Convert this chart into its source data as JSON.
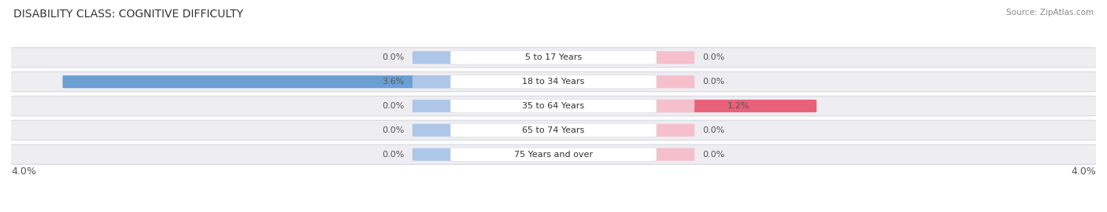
{
  "title": "DISABILITY CLASS: COGNITIVE DIFFICULTY",
  "source": "Source: ZipAtlas.com",
  "categories": [
    "5 to 17 Years",
    "18 to 34 Years",
    "35 to 64 Years",
    "65 to 74 Years",
    "75 Years and over"
  ],
  "male_values": [
    0.0,
    3.6,
    0.0,
    0.0,
    0.0
  ],
  "female_values": [
    0.0,
    0.0,
    1.2,
    0.0,
    0.0
  ],
  "max_val": 4.0,
  "male_color_light": "#aec6e8",
  "male_color_dark": "#6b9fd4",
  "female_color_light": "#f5c0cb",
  "female_color_dark": "#e8607a",
  "row_bg_color": "#ededf2",
  "row_edge_color": "#d8d8e2",
  "title_fontsize": 10,
  "label_fontsize": 8,
  "value_fontsize": 8,
  "tick_fontsize": 9,
  "source_fontsize": 7.5,
  "bottom_label": "4.0%"
}
